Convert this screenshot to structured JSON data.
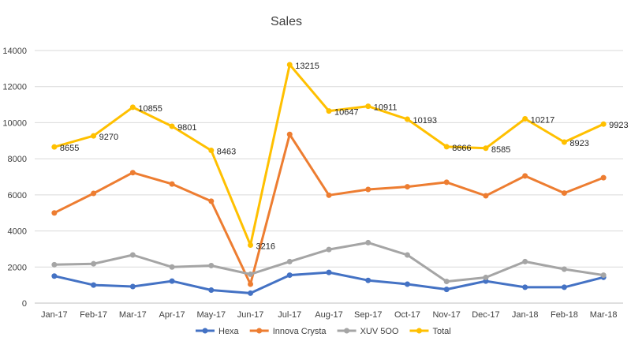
{
  "chart_data": {
    "type": "line",
    "title": "Sales",
    "categories": [
      "Jan-17",
      "Feb-17",
      "Mar-17",
      "Apr-17",
      "May-17",
      "Jun-17",
      "Jul-17",
      "Aug-17",
      "Sep-17",
      "Oct-17",
      "Nov-17",
      "Dec-17",
      "Jan-18",
      "Feb-18",
      "Mar-18"
    ],
    "ylim": [
      0,
      14000
    ],
    "yticks": [
      "0",
      "2000",
      "4000",
      "6000",
      "8000",
      "10000",
      "12000",
      "14000"
    ],
    "grid": true,
    "legend_position": "bottom",
    "series": [
      {
        "name": "Hexa",
        "color": "#4472C4",
        "values": [
          1500,
          1000,
          920,
          1220,
          720,
          550,
          1550,
          1700,
          1260,
          1050,
          760,
          1220,
          880,
          880,
          1430
        ]
      },
      {
        "name": "Innova Crysta",
        "color": "#ED7D31",
        "values": [
          5000,
          6080,
          7230,
          6600,
          5650,
          1050,
          9350,
          5980,
          6300,
          6450,
          6700,
          5950,
          7050,
          6100,
          6950
        ]
      },
      {
        "name": "XUV 5OO",
        "color": "#A5A5A5",
        "values": [
          2130,
          2180,
          2670,
          2000,
          2080,
          1600,
          2300,
          2970,
          3350,
          2670,
          1200,
          1420,
          2300,
          1880,
          1550
        ]
      },
      {
        "name": "Total",
        "color": "#FFC000",
        "values": [
          8655,
          9270,
          10855,
          9801,
          8463,
          3216,
          13215,
          10647,
          10911,
          10193,
          8666,
          8585,
          10217,
          8923,
          9923
        ],
        "data_labels": [
          "8655",
          "9270",
          "10855",
          "9801",
          "8463",
          "3216",
          "13215",
          "10647",
          "10911",
          "10193",
          "8666",
          "8585",
          "10217",
          "8923",
          "9923"
        ]
      }
    ]
  }
}
